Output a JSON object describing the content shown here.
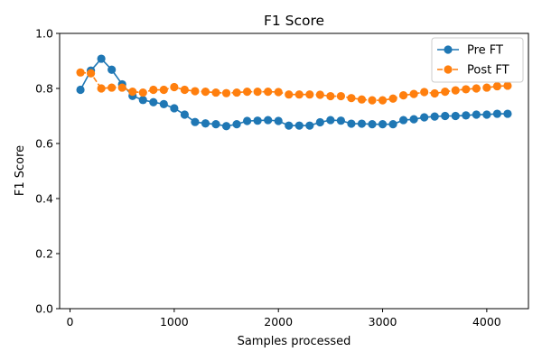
{
  "chart_data": {
    "type": "line",
    "title": "F1 Score",
    "xlabel": "Samples processed",
    "ylabel": "F1 Score",
    "xlim": [
      -100,
      4400
    ],
    "ylim": [
      0.0,
      1.0
    ],
    "x_ticks": [
      0,
      1000,
      2000,
      3000,
      4000
    ],
    "y_ticks": [
      0.0,
      0.2,
      0.4,
      0.6,
      0.8,
      1.0
    ],
    "x_tick_labels": [
      "0",
      "1000",
      "2000",
      "3000",
      "4000"
    ],
    "y_tick_labels": [
      "0.0",
      "0.2",
      "0.4",
      "0.6",
      "0.8",
      "1.0"
    ],
    "grid": false,
    "legend_position": "top-right",
    "x": [
      100,
      200,
      300,
      400,
      500,
      600,
      700,
      800,
      900,
      1000,
      1100,
      1200,
      1300,
      1400,
      1500,
      1600,
      1700,
      1800,
      1900,
      2000,
      2100,
      2200,
      2300,
      2400,
      2500,
      2600,
      2700,
      2800,
      2900,
      3000,
      3100,
      3200,
      3300,
      3400,
      3500,
      3600,
      3700,
      3800,
      3900,
      4000,
      4100,
      4200
    ],
    "series": [
      {
        "name": "Pre FT",
        "color": "#1f77b4",
        "line_style": "solid",
        "values": [
          0.795,
          0.865,
          0.908,
          0.868,
          0.815,
          0.773,
          0.758,
          0.75,
          0.743,
          0.728,
          0.705,
          0.678,
          0.673,
          0.67,
          0.663,
          0.67,
          0.682,
          0.683,
          0.685,
          0.682,
          0.665,
          0.665,
          0.665,
          0.677,
          0.685,
          0.683,
          0.672,
          0.672,
          0.67,
          0.67,
          0.67,
          0.685,
          0.688,
          0.695,
          0.698,
          0.7,
          0.7,
          0.702,
          0.705,
          0.705,
          0.708,
          0.708
        ]
      },
      {
        "name": "Post FT",
        "color": "#ff7f0e",
        "line_style": "dashed",
        "values": [
          0.858,
          0.855,
          0.8,
          0.803,
          0.803,
          0.788,
          0.785,
          0.795,
          0.795,
          0.805,
          0.795,
          0.79,
          0.788,
          0.785,
          0.783,
          0.785,
          0.788,
          0.788,
          0.788,
          0.787,
          0.778,
          0.778,
          0.778,
          0.777,
          0.772,
          0.772,
          0.765,
          0.76,
          0.757,
          0.757,
          0.763,
          0.775,
          0.78,
          0.787,
          0.782,
          0.788,
          0.793,
          0.797,
          0.8,
          0.803,
          0.808,
          0.81
        ]
      }
    ]
  }
}
